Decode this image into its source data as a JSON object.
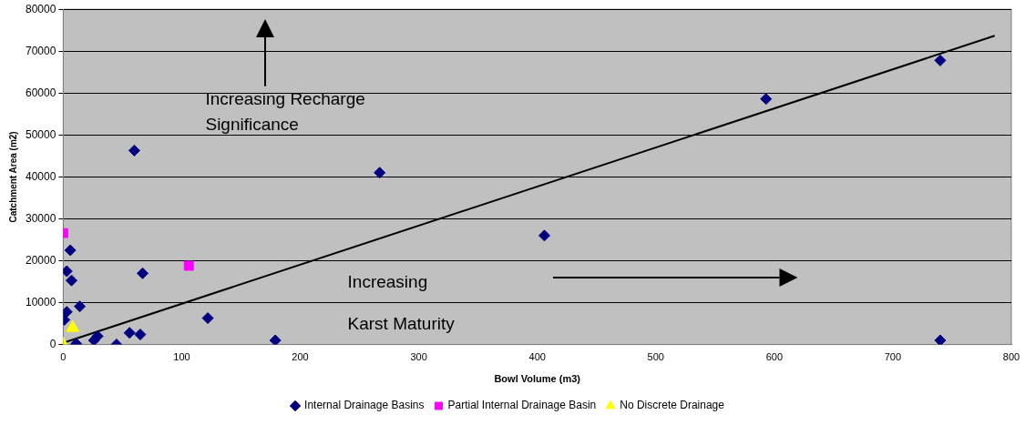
{
  "chart_data": {
    "type": "scatter",
    "xlabel": "Bowl Volume (m3)",
    "ylabel": "Catchment Area (m2)",
    "xlim": [
      0,
      800
    ],
    "xticks": [
      0,
      100,
      200,
      300,
      400,
      500,
      600,
      700,
      800
    ],
    "ylim": [
      0,
      80000
    ],
    "yticks": [
      0,
      10000,
      20000,
      30000,
      40000,
      50000,
      60000,
      70000,
      80000
    ],
    "grid": "y",
    "legend": "bottom",
    "annotations": [
      "Increasing Recharge Significance",
      "Increasing Karst Maturity"
    ],
    "series": [
      {
        "name": "Internal Drainage Basins",
        "color": "#000080",
        "marker": "diamond",
        "x": [
          60,
          267,
          593,
          740,
          406,
          740,
          6,
          3,
          7,
          67,
          14,
          3,
          1,
          122,
          56,
          65,
          29,
          26,
          11,
          45,
          179
        ],
        "values": [
          46300,
          41000,
          58600,
          67800,
          26000,
          1000,
          22500,
          17500,
          15300,
          17000,
          9100,
          7800,
          5900,
          6300,
          2800,
          2400,
          2000,
          1000,
          200,
          0,
          1000
        ]
      },
      {
        "name": "Partial Internal Drainage Basin",
        "color": "#ff00ff",
        "marker": "square",
        "x": [
          0,
          106
        ],
        "values": [
          26600,
          18800
        ]
      },
      {
        "name": "No Discrete Drainage",
        "color": "#ffff00",
        "marker": "triangle",
        "x": [
          0,
          8
        ],
        "values": [
          0,
          4000
        ]
      },
      {
        "type": "line",
        "color": "#000000",
        "marker": "none",
        "x": [
          0,
          786
        ],
        "values": [
          400,
          73700
        ]
      }
    ]
  }
}
